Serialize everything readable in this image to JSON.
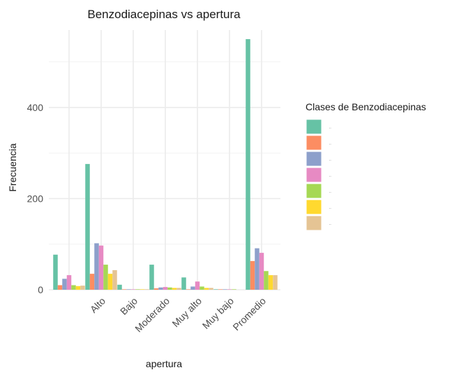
{
  "chart_data": {
    "type": "bar",
    "title": "Benzodiacepinas vs apertura",
    "xlabel": "apertura",
    "ylabel": "Frecuencia",
    "categories": [
      "",
      "Alto",
      "Bajo",
      "Moderado",
      "Muy alto",
      "Muy bajo",
      "Promedio"
    ],
    "ylim": [
      0,
      570
    ],
    "yticks": [
      0,
      200,
      400
    ],
    "grid": true,
    "legend_title": "Clases de Benzodiacepinas",
    "legend_position": "right",
    "series": [
      {
        "name": "..",
        "color": "#66C2A5",
        "values": [
          77,
          276,
          11,
          55,
          27,
          1,
          550
        ]
      },
      {
        "name": "..",
        "color": "#FC8D62",
        "values": [
          10,
          35,
          1,
          3,
          1,
          1,
          63
        ]
      },
      {
        "name": "..",
        "color": "#8DA0CB",
        "values": [
          24,
          102,
          1,
          5,
          7,
          1,
          91
        ]
      },
      {
        "name": "..",
        "color": "#E78AC3",
        "values": [
          32,
          97,
          1,
          6,
          18,
          1,
          81
        ]
      },
      {
        "name": "..",
        "color": "#A6D854",
        "values": [
          10,
          55,
          1,
          5,
          7,
          1,
          41
        ]
      },
      {
        "name": "..",
        "color": "#FFD92F",
        "values": [
          8,
          35,
          1,
          4,
          4,
          0,
          32
        ]
      },
      {
        "name": "..",
        "color": "#E5C494",
        "values": [
          9,
          43,
          1,
          4,
          4,
          0,
          32
        ]
      }
    ]
  }
}
